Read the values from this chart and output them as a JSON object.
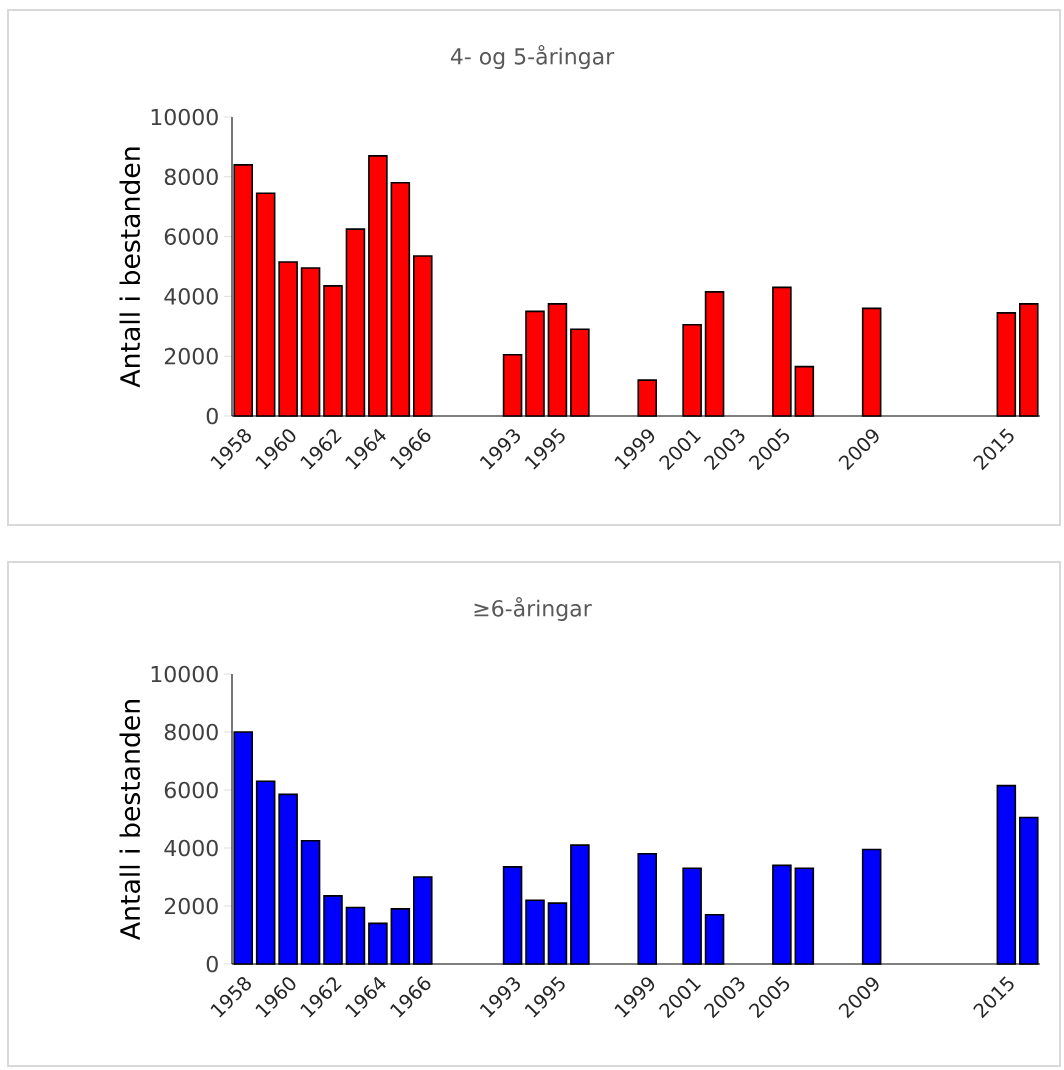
{
  "chart_data": [
    {
      "type": "bar",
      "title": "4- og 5-åringar",
      "ylabel": "Antall i bestanden",
      "color": "#ff0000",
      "categories": [
        "1958",
        null,
        "1960",
        null,
        "1962",
        null,
        "1964",
        null,
        "1966",
        null,
        null,
        null,
        "1993",
        null,
        "1995",
        null,
        null,
        null,
        "1999",
        null,
        "2001",
        null,
        "2003",
        null,
        "2005",
        null,
        null,
        null,
        "2009",
        null,
        null,
        null,
        null,
        null,
        "2015",
        null
      ],
      "values": [
        8400,
        7450,
        5150,
        4950,
        4350,
        6250,
        8700,
        7800,
        5350,
        null,
        null,
        null,
        2050,
        3500,
        3750,
        2900,
        null,
        null,
        1200,
        null,
        3050,
        4150,
        null,
        null,
        4300,
        1650,
        null,
        null,
        3600,
        null,
        null,
        null,
        null,
        null,
        3450,
        3750
      ],
      "ylim": [
        0,
        10000
      ],
      "yticks": [
        0,
        2000,
        4000,
        6000,
        8000,
        10000
      ]
    },
    {
      "type": "bar",
      "title": "≥6-åringar",
      "ylabel": "Antall i bestanden",
      "color": "#0000ff",
      "categories": [
        "1958",
        null,
        "1960",
        null,
        "1962",
        null,
        "1964",
        null,
        "1966",
        null,
        null,
        null,
        "1993",
        null,
        "1995",
        null,
        null,
        null,
        "1999",
        null,
        "2001",
        null,
        "2003",
        null,
        "2005",
        null,
        null,
        null,
        "2009",
        null,
        null,
        null,
        null,
        null,
        "2015",
        null
      ],
      "values": [
        8000,
        6300,
        5850,
        4250,
        2350,
        1950,
        1400,
        1900,
        3000,
        null,
        null,
        null,
        3350,
        2200,
        2100,
        4100,
        null,
        null,
        3800,
        null,
        3300,
        1700,
        null,
        null,
        3400,
        3300,
        null,
        null,
        3950,
        null,
        null,
        null,
        null,
        null,
        6150,
        5050
      ],
      "ylim": [
        0,
        10000
      ],
      "yticks": [
        0,
        2000,
        4000,
        6000,
        8000,
        10000
      ]
    }
  ]
}
